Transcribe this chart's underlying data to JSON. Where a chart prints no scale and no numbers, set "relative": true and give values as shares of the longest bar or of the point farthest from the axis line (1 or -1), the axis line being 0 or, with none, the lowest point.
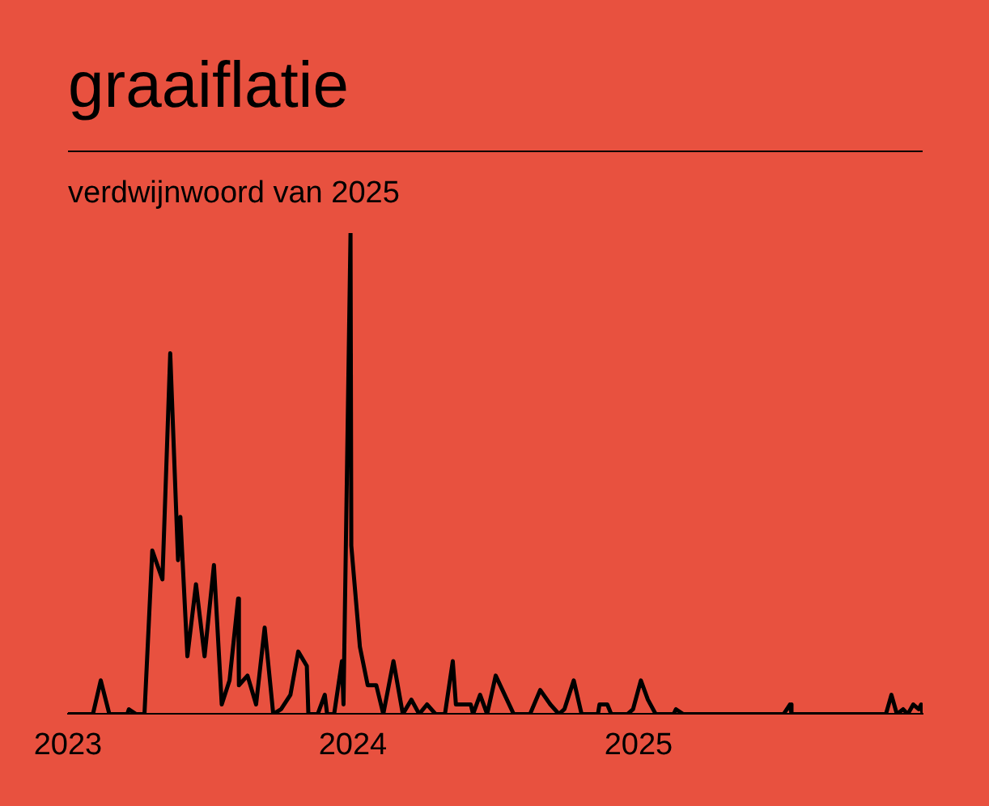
{
  "chart_data": {
    "type": "line",
    "title": "graaiflatie",
    "subtitle": "verdwijnwoord van 2025",
    "relative": true,
    "color": "#000000",
    "xlim": [
      "2023-01-01",
      "2025-12-31"
    ],
    "xticks": [
      {
        "value": "2023-01-01",
        "label": "2023"
      },
      {
        "value": "2024-01-01",
        "label": "2024"
      },
      {
        "value": "2025-01-01",
        "label": "2025"
      }
    ],
    "x": [
      "2023-01-01",
      "2023-02-02",
      "2023-02-12",
      "2023-02-23",
      "2023-03-18",
      "2023-03-20",
      "2023-03-29",
      "2023-04-09",
      "2023-04-19",
      "2023-05-02",
      "2023-05-12",
      "2023-05-22",
      "2023-05-25",
      "2023-06-03",
      "2023-06-14",
      "2023-06-25",
      "2023-07-07",
      "2023-07-17",
      "2023-07-27",
      "2023-08-07",
      "2023-08-08",
      "2023-08-19",
      "2023-08-30",
      "2023-09-10",
      "2023-09-21",
      "2023-10-01",
      "2023-10-13",
      "2023-10-23",
      "2023-11-03",
      "2023-11-05",
      "2023-11-17",
      "2023-11-26",
      "2023-11-29",
      "2023-12-08",
      "2023-12-18",
      "2023-12-20",
      "2023-12-29",
      "2023-12-30",
      "2024-01-10",
      "2024-01-20",
      "2024-01-31",
      "2024-02-09",
      "2024-02-22",
      "2024-03-05",
      "2024-03-16",
      "2024-03-26",
      "2024-04-05",
      "2024-04-16",
      "2024-04-28",
      "2024-05-08",
      "2024-05-12",
      "2024-05-31",
      "2024-06-03",
      "2024-06-12",
      "2024-06-21",
      "2024-07-02",
      "2024-07-25",
      "2024-08-15",
      "2024-08-28",
      "2024-09-10",
      "2024-09-21",
      "2024-09-28",
      "2024-10-10",
      "2024-10-20",
      "2024-11-10",
      "2024-11-12",
      "2024-11-22",
      "2024-11-27",
      "2024-12-18",
      "2024-12-25",
      "2025-01-04",
      "2025-01-13",
      "2025-01-23",
      "2025-02-15",
      "2025-02-18",
      "2025-02-27",
      "2025-07-06",
      "2025-07-14",
      "2025-07-16",
      "2025-11-14",
      "2025-11-21",
      "2025-11-28",
      "2025-12-06",
      "2025-12-12",
      "2025-12-19",
      "2025-12-26",
      "2025-12-29",
      "2025-12-31"
    ],
    "values": [
      0,
      0,
      0.07,
      0,
      0,
      0.01,
      0,
      0,
      0.34,
      0.28,
      0.75,
      0.32,
      0.41,
      0.12,
      0.27,
      0.12,
      0.31,
      0.02,
      0.07,
      0.24,
      0.06,
      0.08,
      0.02,
      0.18,
      0,
      0.01,
      0.04,
      0.13,
      0.1,
      0,
      0,
      0.04,
      0,
      0,
      0.11,
      0.02,
      1,
      0.35,
      0.14,
      0.06,
      0.06,
      0,
      0.11,
      0,
      0.03,
      0,
      0.02,
      0,
      0,
      0.11,
      0.02,
      0.02,
      0,
      0.04,
      0,
      0.08,
      0,
      0,
      0.05,
      0.02,
      0,
      0.01,
      0.07,
      0,
      0,
      0.02,
      0.02,
      0,
      0,
      0.01,
      0.07,
      0.03,
      0,
      0,
      0.01,
      0,
      0,
      0.02,
      0,
      0,
      0.04,
      0,
      0.01,
      0,
      0.02,
      0.01,
      0.02,
      0
    ]
  }
}
